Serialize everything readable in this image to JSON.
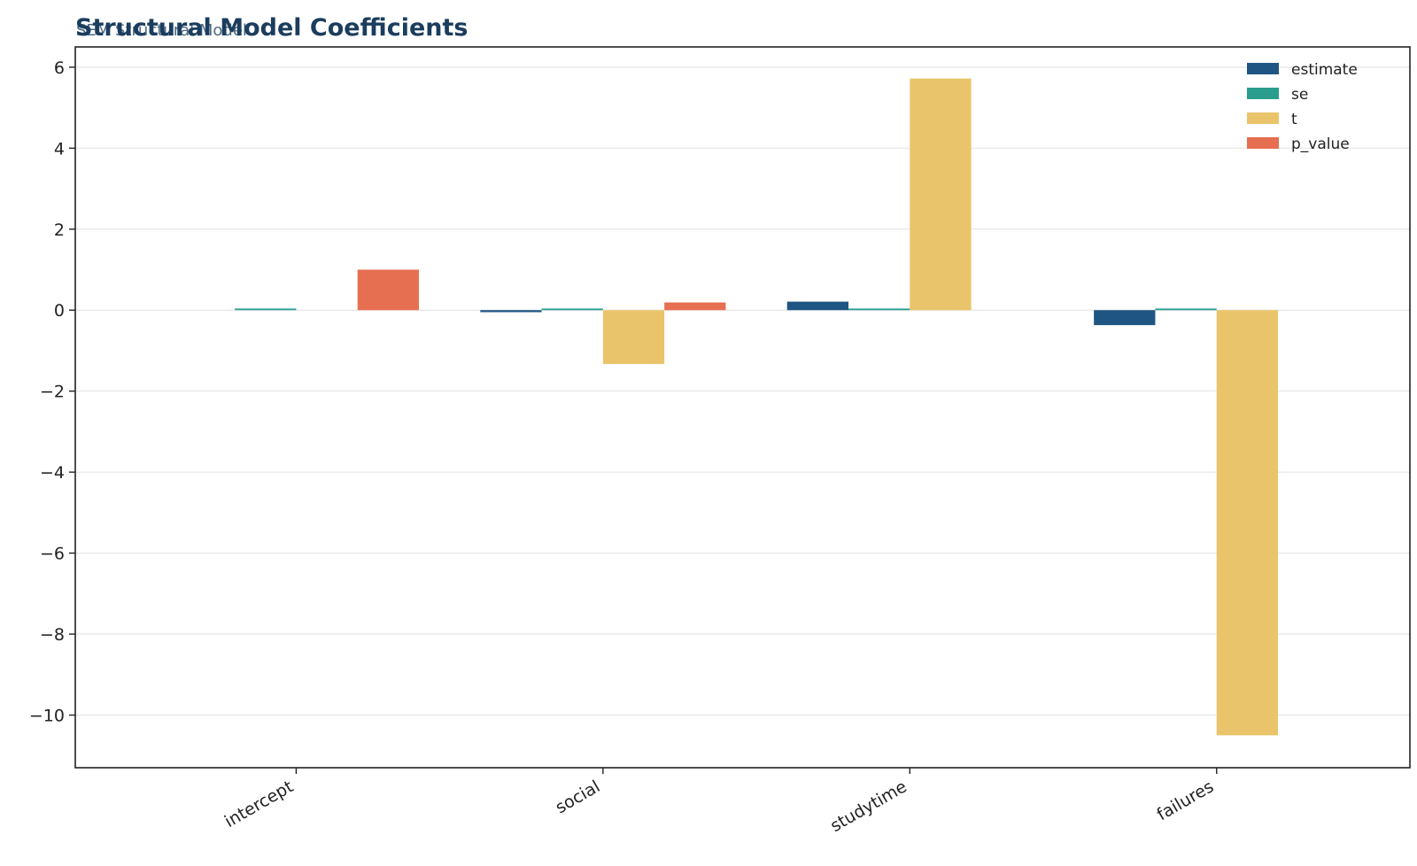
{
  "chart_data": {
    "type": "bar",
    "title": "Structural Model Coefficients",
    "subtitle": "SEM Structural Model",
    "xlabel": "",
    "ylabel": "",
    "categories": [
      "intercept",
      "social",
      "studytime",
      "failures"
    ],
    "series": [
      {
        "name": "estimate",
        "color": "#1f5582",
        "values": [
          0.0,
          -0.05,
          0.21,
          -0.37
        ]
      },
      {
        "name": "se",
        "color": "#2a9d8f",
        "values": [
          0.04,
          0.04,
          0.04,
          0.04
        ]
      },
      {
        "name": "t",
        "color": "#e9c46a",
        "values": [
          0.0,
          -1.33,
          5.72,
          -10.5
        ]
      },
      {
        "name": "p_value",
        "color": "#e76f51",
        "values": [
          1.0,
          0.19,
          0.0,
          0.0
        ]
      }
    ],
    "ylim": [
      -11.3,
      6.5
    ],
    "yticks": [
      6,
      4,
      2,
      0,
      -2,
      -4,
      -6,
      -8,
      -10
    ],
    "ytick_labels": [
      "6",
      "4",
      "2",
      "0",
      "−2",
      "−4",
      "−6",
      "−8",
      "−10"
    ],
    "grid": true,
    "legend_position": "top-right",
    "title_color": "#1b3d5e",
    "subtitle_color": "#4f6b82"
  }
}
